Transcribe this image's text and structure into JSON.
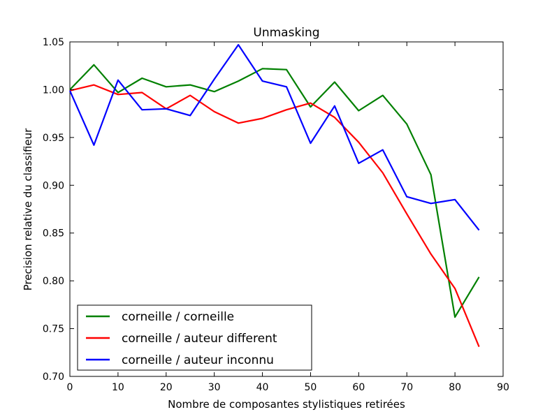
{
  "chart_data": {
    "type": "line",
    "title": "Unmasking",
    "xlabel": "Nombre de composantes stylistiques retirées",
    "ylabel": "Precision relative du classifieur",
    "xlim": [
      0,
      90
    ],
    "ylim": [
      0.7,
      1.05
    ],
    "xticks": [
      "0",
      "10",
      "20",
      "30",
      "40",
      "50",
      "60",
      "70",
      "80",
      "90"
    ],
    "yticks": [
      "0.70",
      "0.75",
      "0.80",
      "0.85",
      "0.90",
      "0.95",
      "1.00",
      "1.05"
    ],
    "grid": false,
    "legend_position": "lower-left",
    "x": [
      0,
      5,
      10,
      15,
      20,
      25,
      30,
      35,
      40,
      45,
      50,
      55,
      60,
      65,
      70,
      75,
      80,
      85
    ],
    "series": [
      {
        "name": "corneille / corneille",
        "color": "#008000",
        "values": [
          1.0,
          1.026,
          0.997,
          1.012,
          1.003,
          1.005,
          0.998,
          1.009,
          1.022,
          1.021,
          0.982,
          1.008,
          0.978,
          0.994,
          0.964,
          0.911,
          0.762,
          0.804
        ]
      },
      {
        "name": "corneille / auteur different",
        "color": "#ff0000",
        "values": [
          0.999,
          1.005,
          0.995,
          0.997,
          0.98,
          0.994,
          0.977,
          0.965,
          0.97,
          0.979,
          0.986,
          0.971,
          0.945,
          0.913,
          0.87,
          0.828,
          0.792,
          0.731
        ]
      },
      {
        "name": "corneille / auteur inconnu",
        "color": "#0000ff",
        "values": [
          0.999,
          0.942,
          1.01,
          0.979,
          0.98,
          0.973,
          1.011,
          1.047,
          1.009,
          1.003,
          0.944,
          0.983,
          0.923,
          0.937,
          0.888,
          0.881,
          0.885,
          0.853
        ]
      }
    ]
  }
}
